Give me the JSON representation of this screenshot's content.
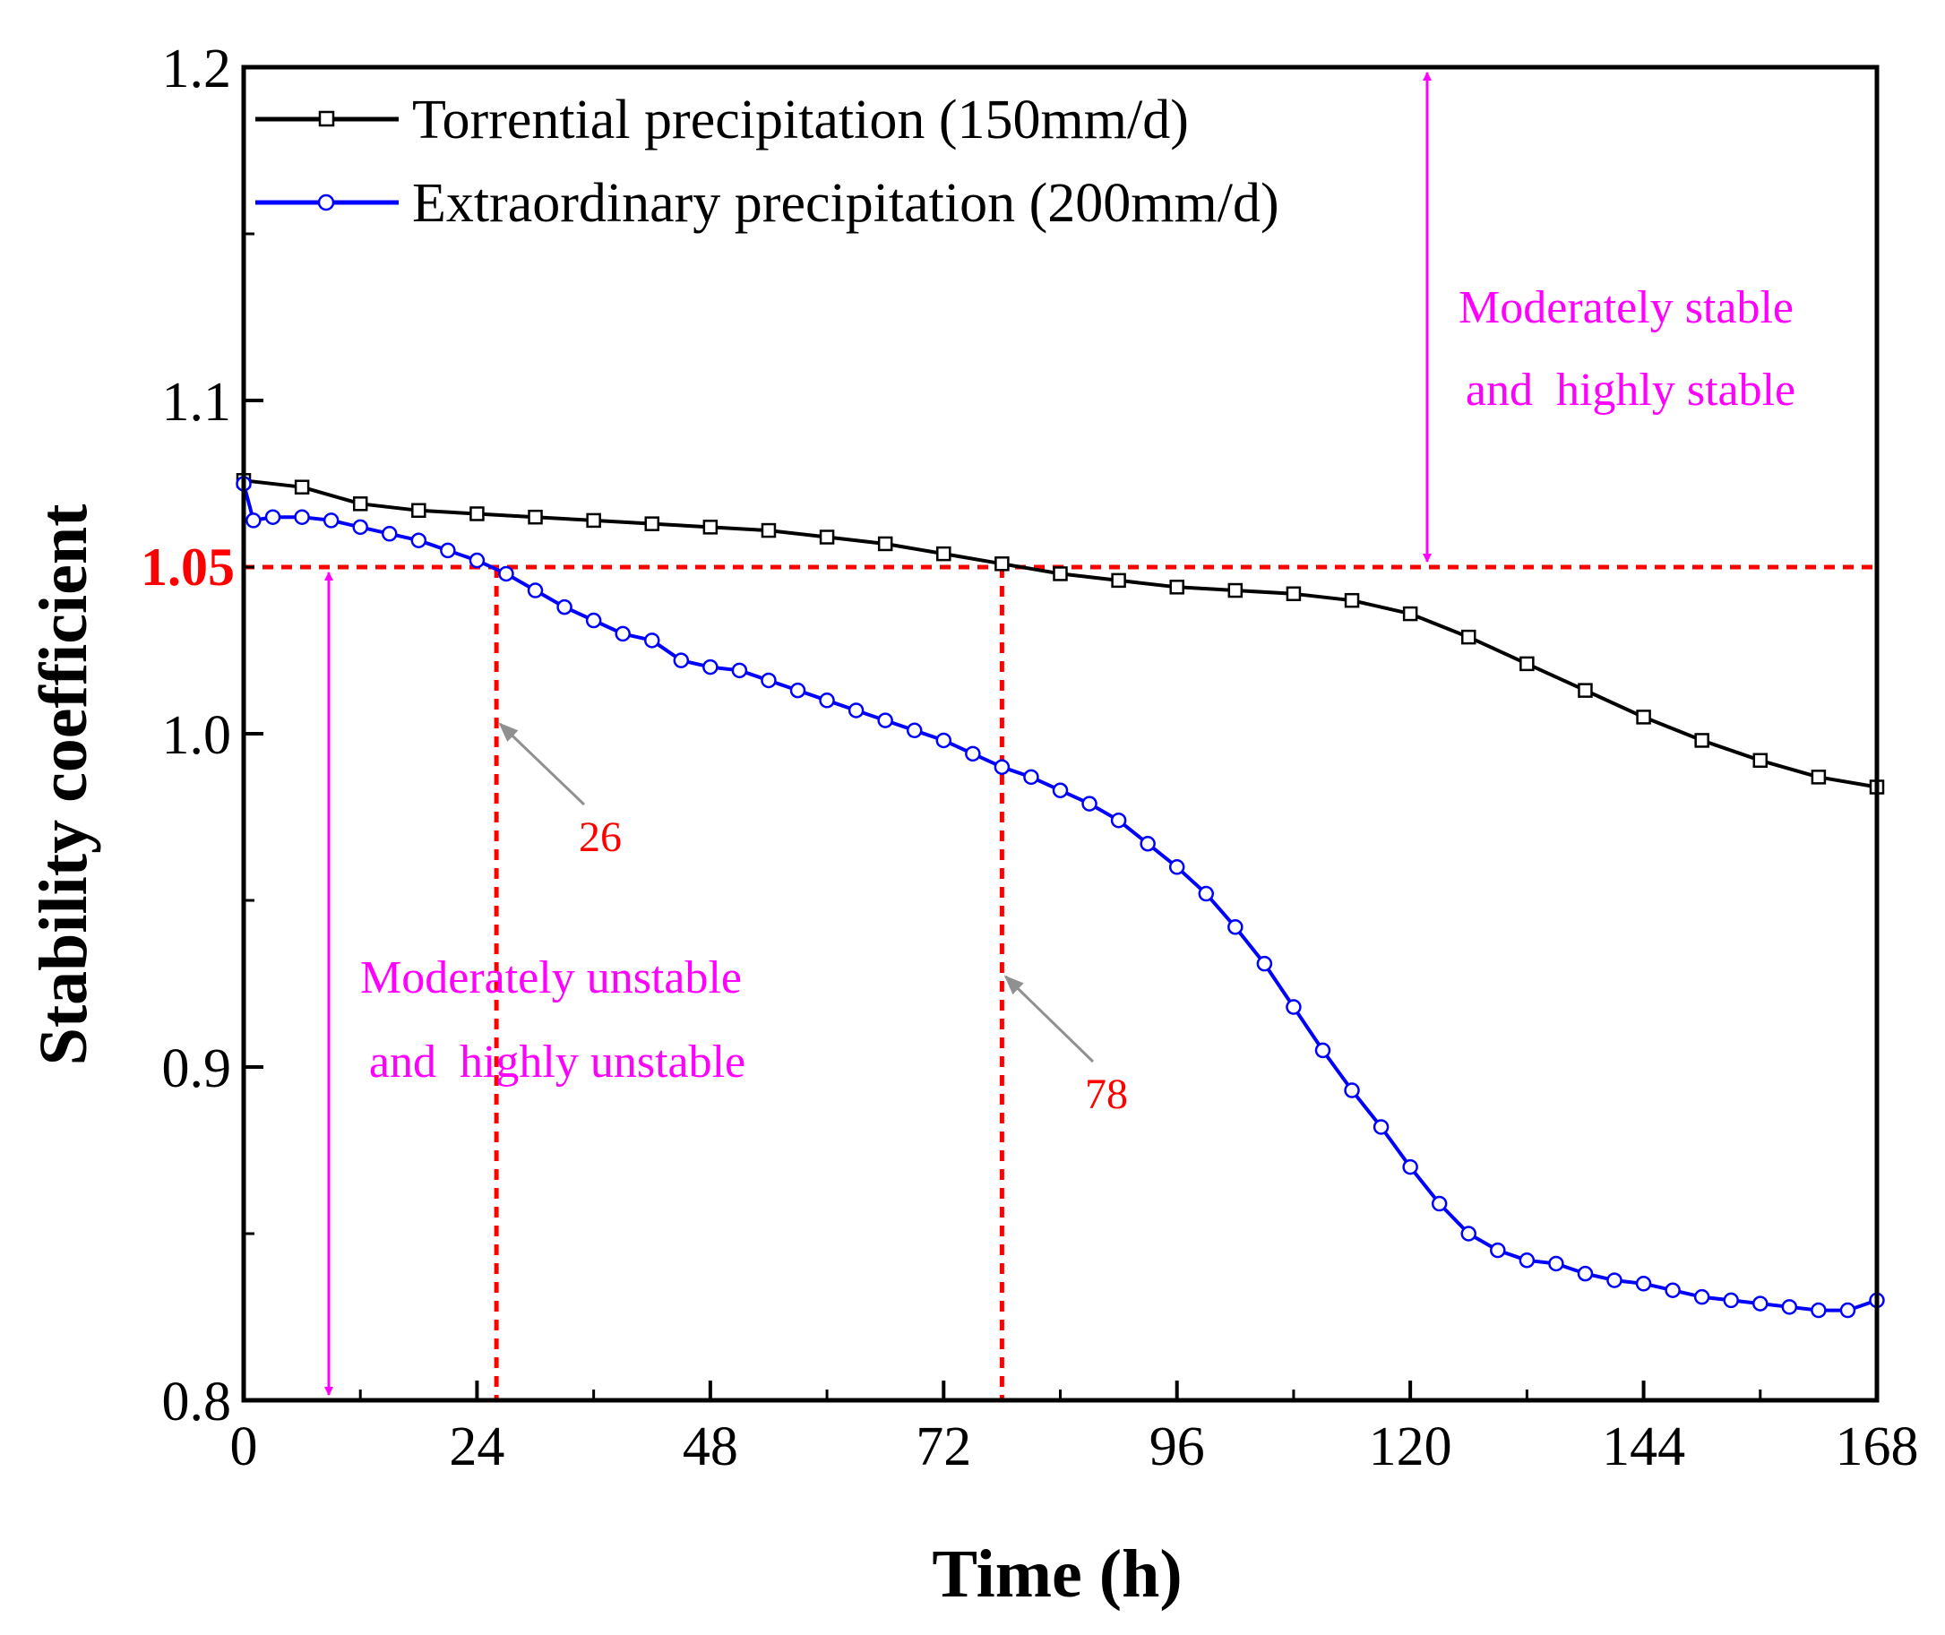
{
  "chart_data": {
    "type": "line",
    "xlabel": "Time (h)",
    "ylabel": "Stability coefficient",
    "xlim": [
      0,
      168
    ],
    "ylim": [
      0.8,
      1.2
    ],
    "x_ticks": [
      0,
      24,
      48,
      72,
      96,
      120,
      144,
      168
    ],
    "x_tick_labels": [
      "0",
      "24",
      "48",
      "72",
      "96",
      "120",
      "144",
      "168"
    ],
    "y_ticks": [
      0.8,
      0.9,
      1.0,
      1.1,
      1.2
    ],
    "y_tick_labels": [
      "0.8",
      "0.9",
      "1.0",
      "1.1",
      "1.2"
    ],
    "legend_position": "top-left",
    "series": [
      {
        "name": "Torrential precipitation (150mm/d)",
        "color": "#000000",
        "marker": "square",
        "x": [
          0,
          6,
          12,
          18,
          24,
          30,
          36,
          42,
          48,
          54,
          60,
          66,
          72,
          78,
          84,
          90,
          96,
          102,
          108,
          114,
          120,
          126,
          132,
          138,
          144,
          150,
          156,
          162,
          168
        ],
        "values": [
          1.076,
          1.074,
          1.069,
          1.067,
          1.066,
          1.065,
          1.064,
          1.063,
          1.062,
          1.061,
          1.059,
          1.057,
          1.054,
          1.051,
          1.048,
          1.046,
          1.044,
          1.043,
          1.042,
          1.04,
          1.036,
          1.029,
          1.021,
          1.013,
          1.005,
          0.998,
          0.992,
          0.987,
          0.984
        ]
      },
      {
        "name": "Extraordinary precipitation (200mm/d)",
        "color": "#0000ff",
        "marker": "circle",
        "x": [
          0,
          1,
          3,
          6,
          9,
          12,
          15,
          18,
          21,
          24,
          27,
          30,
          33,
          36,
          39,
          42,
          45,
          48,
          51,
          54,
          57,
          60,
          63,
          66,
          69,
          72,
          75,
          78,
          81,
          84,
          87,
          90,
          93,
          96,
          99,
          102,
          105,
          108,
          111,
          114,
          117,
          120,
          123,
          126,
          129,
          132,
          135,
          138,
          141,
          144,
          147,
          150,
          153,
          156,
          159,
          162,
          165,
          168
        ],
        "values": [
          1.075,
          1.064,
          1.065,
          1.065,
          1.064,
          1.062,
          1.06,
          1.058,
          1.055,
          1.052,
          1.048,
          1.043,
          1.038,
          1.034,
          1.03,
          1.028,
          1.022,
          1.02,
          1.019,
          1.016,
          1.013,
          1.01,
          1.007,
          1.004,
          1.001,
          0.998,
          0.994,
          0.99,
          0.987,
          0.983,
          0.979,
          0.974,
          0.967,
          0.96,
          0.952,
          0.942,
          0.931,
          0.918,
          0.905,
          0.893,
          0.882,
          0.87,
          0.859,
          0.85,
          0.845,
          0.842,
          0.841,
          0.838,
          0.836,
          0.835,
          0.833,
          0.831,
          0.83,
          0.829,
          0.828,
          0.827,
          0.827,
          0.83
        ]
      }
    ],
    "threshold": {
      "value": 1.05,
      "label": "1.05",
      "color": "#ff0000"
    },
    "vertical_markers": [
      {
        "x": 26,
        "label": "26"
      },
      {
        "x": 78,
        "label": "78"
      }
    ],
    "regions": [
      {
        "lines": [
          "Moderately stable",
          "and  highly stable"
        ],
        "range": [
          1.05,
          1.2
        ]
      },
      {
        "lines": [
          "Moderately unstable",
          "and  highly unstable"
        ],
        "range": [
          0.8,
          1.05
        ]
      }
    ],
    "annotation_color": "#ff00ff"
  }
}
